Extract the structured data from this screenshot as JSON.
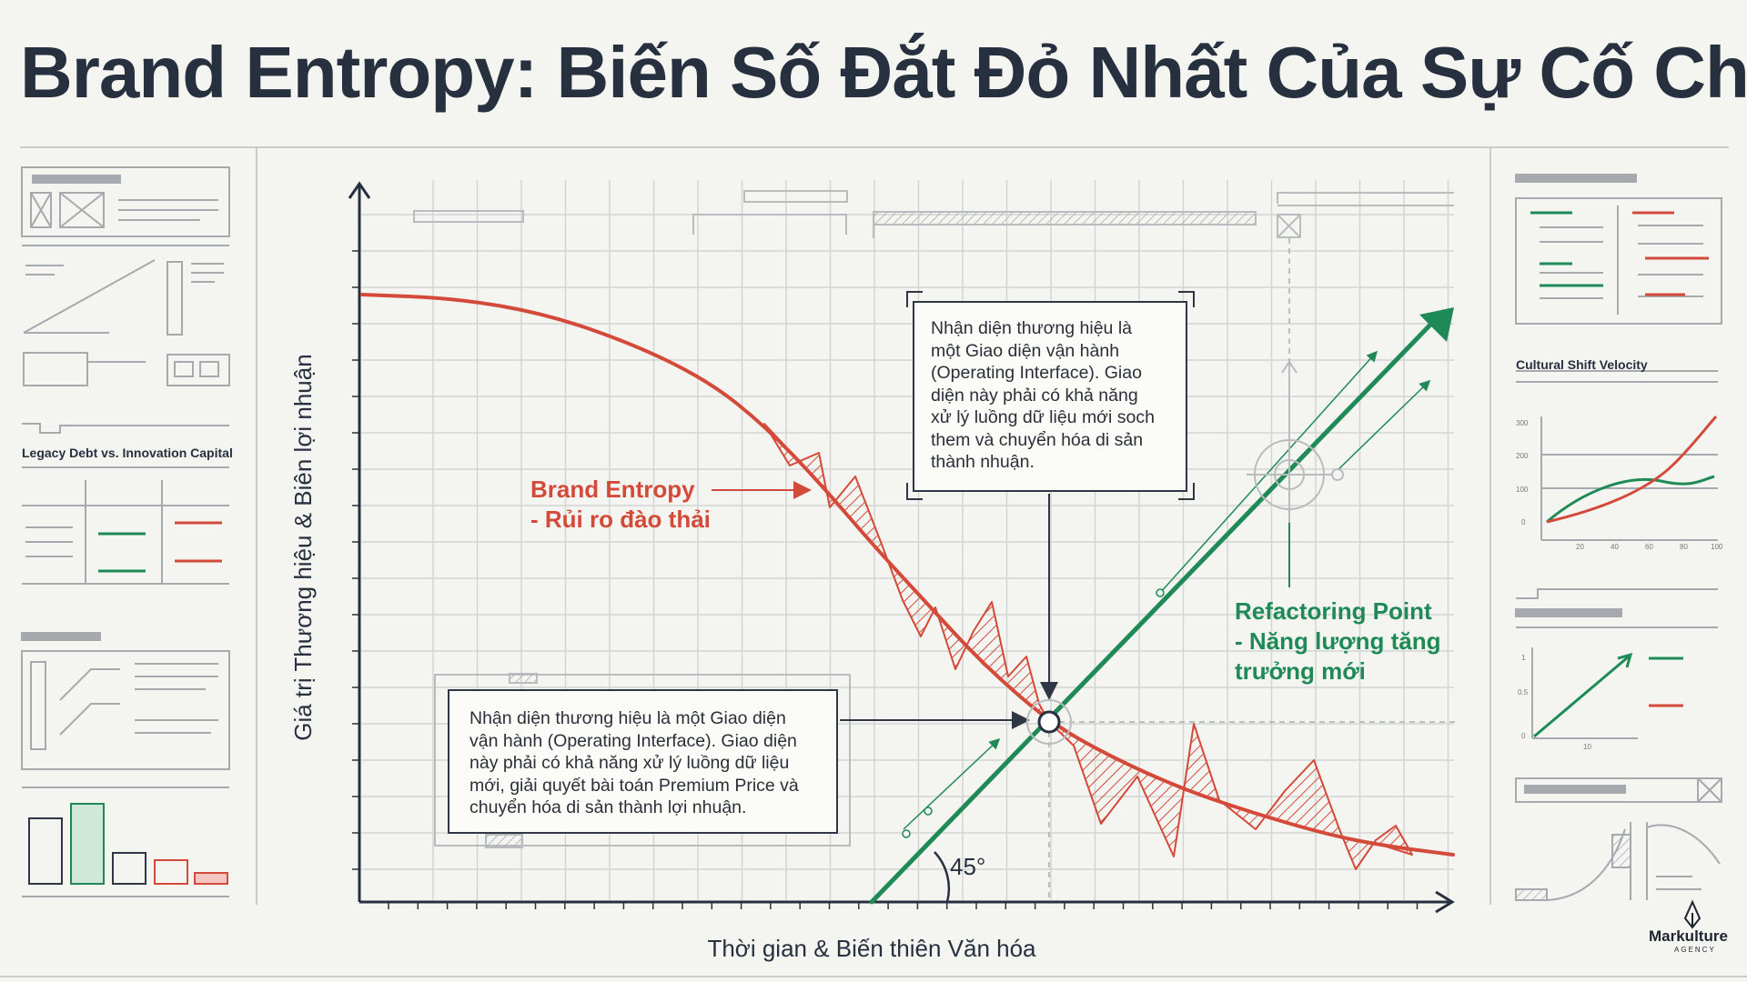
{
  "title": "Brand Entropy: Biến Số Đắt Đỏ Nhất Của Sự Cố Chấp",
  "chart_data": {
    "type": "line",
    "title": "Brand Entropy: Biến Số Đắt Đỏ Nhất Của Sự Cố Chấp",
    "xlabel": "Thời gian & Biến thiên Văn hóa",
    "ylabel": "Giá trị Thương hiệu & Biên lợi nhuận",
    "grid": true,
    "series": [
      {
        "name": "Brand Entropy - Rủi ro đào thải",
        "color": "#d44a3a",
        "shape": "decaying curve",
        "volatility_band": true
      },
      {
        "name": "Refactoring Point - Năng lượng tăng trưởng mới",
        "color": "#1f8a57",
        "shape": "straight rising line",
        "angle": "45°"
      }
    ],
    "intersection_marker": true
  },
  "labels": {
    "entropy_line1": "Brand Entropy",
    "entropy_line2": "- Rủi ro đào thải",
    "refactor_line1": "Refactoring Point",
    "refactor_line2": "- Năng lượng tăng",
    "refactor_line3": "trưởng mới",
    "angle": "45°"
  },
  "callouts": {
    "top_lines": [
      "Nhận diện thương hiệu là",
      "một Giao diện vận hành",
      "(Operating Interface). Giao",
      "diện này phải có khả năng",
      "xử lý luồng dữ liệu mới soch",
      "them và chuyển hóa di sản",
      "thành nhuận."
    ],
    "bottom_lines": [
      "Nhận diện thương hiệu là một Giao diện",
      "vận hành (Operating Interface). Giao diện",
      "này phải có khả năng xử lý luồng dữ liệu",
      "mới, giải quyết bài toán Premium Price và",
      "chuyển hóa di sản thành lợi nhuận."
    ]
  },
  "side_panels": {
    "left_title": "Legacy Debt vs. Innovation Capital",
    "right_title": "Cultural Shift Velocity",
    "right_mini_chart_y_ticks": [
      "300",
      "200",
      "100",
      "0"
    ],
    "right_mini_chart_x_ticks": [
      "20",
      "40",
      "60",
      "80",
      "100"
    ],
    "right_small_chart_y_ticks": [
      "1",
      "0.5",
      "0"
    ],
    "right_small_chart_x_ticks": [
      "10"
    ]
  },
  "logo": {
    "name": "Markulture",
    "sub": "AGENCY"
  },
  "colors": {
    "entropy": "#d44a3a",
    "growth": "#1f8a57",
    "ink": "#27303f",
    "background": "#f4f5f0"
  }
}
